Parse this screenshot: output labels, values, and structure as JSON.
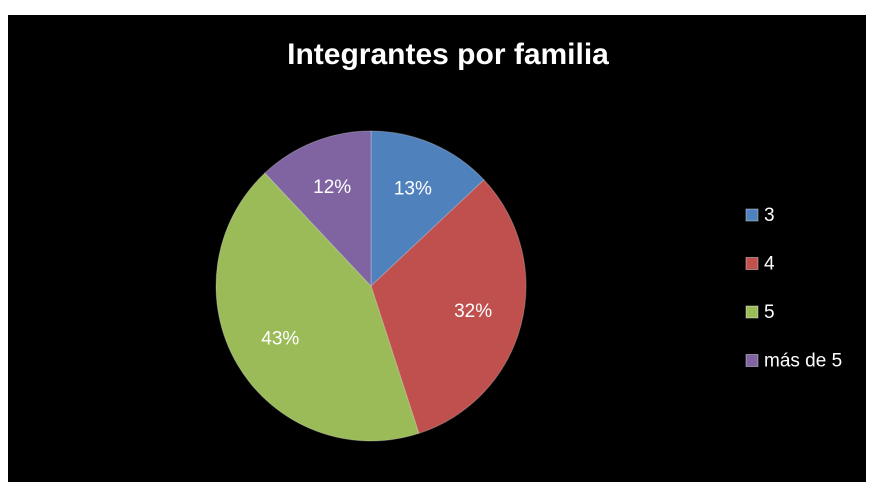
{
  "chart_data": {
    "type": "pie",
    "title": "Integrantes por familia",
    "categories": [
      "3",
      "4",
      "5",
      "más de 5"
    ],
    "values": [
      13,
      32,
      43,
      12
    ],
    "value_labels": [
      "13%",
      "32%",
      "43%",
      "12%"
    ],
    "colors": [
      "#4f81bd",
      "#c0504d",
      "#9bbb59",
      "#8064a2"
    ],
    "legend": "right"
  }
}
